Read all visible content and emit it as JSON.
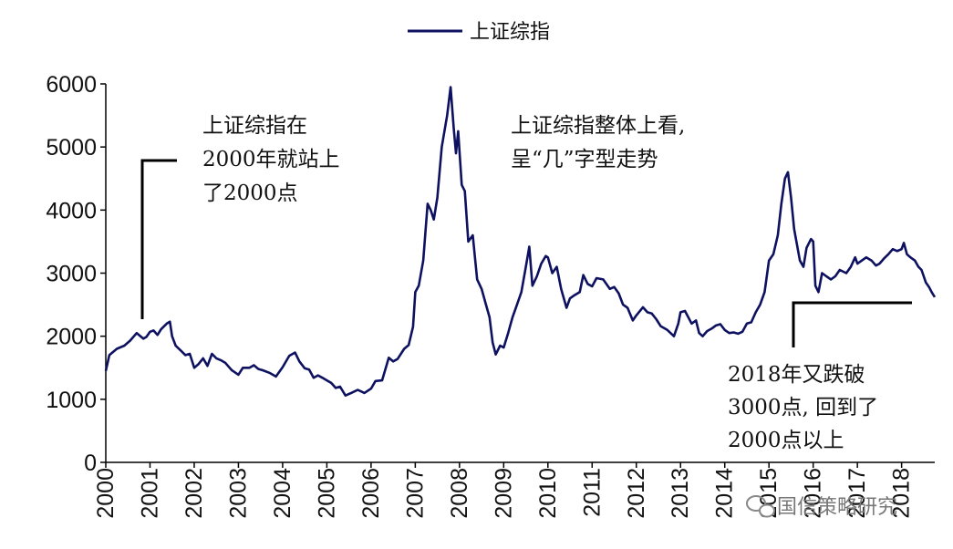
{
  "chart_data": {
    "type": "line",
    "title": "",
    "xlabel": "",
    "ylabel": "",
    "ylim": [
      0,
      6000
    ],
    "xlim": [
      2000,
      2018.75
    ],
    "y_ticks": [
      "0",
      "1000",
      "2000",
      "3000",
      "4000",
      "5000",
      "6000"
    ],
    "x_ticks": [
      "2000",
      "2001",
      "2002",
      "2003",
      "2004",
      "2005",
      "2006",
      "2007",
      "2008",
      "2009",
      "2010",
      "2011",
      "2012",
      "2013",
      "2014",
      "2015",
      "2016",
      "2017",
      "2018"
    ],
    "legend": {
      "position": "top-center",
      "entries": [
        "上证综指"
      ]
    },
    "series": [
      {
        "name": "上证综指",
        "color": "#0d1160",
        "points": [
          [
            2000.0,
            1450
          ],
          [
            2000.08,
            1700
          ],
          [
            2000.25,
            1800
          ],
          [
            2000.42,
            1850
          ],
          [
            2000.55,
            1930
          ],
          [
            2000.7,
            2050
          ],
          [
            2000.85,
            1960
          ],
          [
            2000.92,
            1990
          ],
          [
            2001.0,
            2070
          ],
          [
            2001.08,
            2090
          ],
          [
            2001.17,
            2020
          ],
          [
            2001.25,
            2110
          ],
          [
            2001.38,
            2200
          ],
          [
            2001.45,
            2230
          ],
          [
            2001.5,
            2000
          ],
          [
            2001.58,
            1850
          ],
          [
            2001.7,
            1770
          ],
          [
            2001.8,
            1700
          ],
          [
            2001.9,
            1720
          ],
          [
            2002.0,
            1500
          ],
          [
            2002.1,
            1560
          ],
          [
            2002.2,
            1650
          ],
          [
            2002.3,
            1530
          ],
          [
            2002.4,
            1720
          ],
          [
            2002.5,
            1650
          ],
          [
            2002.6,
            1620
          ],
          [
            2002.7,
            1580
          ],
          [
            2002.85,
            1460
          ],
          [
            2003.0,
            1390
          ],
          [
            2003.1,
            1500
          ],
          [
            2003.25,
            1500
          ],
          [
            2003.35,
            1540
          ],
          [
            2003.45,
            1480
          ],
          [
            2003.55,
            1460
          ],
          [
            2003.7,
            1420
          ],
          [
            2003.85,
            1360
          ],
          [
            2004.0,
            1510
          ],
          [
            2004.15,
            1690
          ],
          [
            2004.28,
            1740
          ],
          [
            2004.38,
            1600
          ],
          [
            2004.5,
            1490
          ],
          [
            2004.6,
            1470
          ],
          [
            2004.7,
            1340
          ],
          [
            2004.8,
            1380
          ],
          [
            2004.9,
            1340
          ],
          [
            2005.0,
            1300
          ],
          [
            2005.1,
            1260
          ],
          [
            2005.2,
            1180
          ],
          [
            2005.3,
            1200
          ],
          [
            2005.42,
            1060
          ],
          [
            2005.55,
            1100
          ],
          [
            2005.7,
            1150
          ],
          [
            2005.85,
            1100
          ],
          [
            2006.0,
            1170
          ],
          [
            2006.1,
            1290
          ],
          [
            2006.25,
            1300
          ],
          [
            2006.4,
            1660
          ],
          [
            2006.5,
            1600
          ],
          [
            2006.6,
            1640
          ],
          [
            2006.75,
            1800
          ],
          [
            2006.85,
            1860
          ],
          [
            2006.95,
            2150
          ],
          [
            2007.0,
            2700
          ],
          [
            2007.08,
            2800
          ],
          [
            2007.18,
            3200
          ],
          [
            2007.28,
            4100
          ],
          [
            2007.35,
            4000
          ],
          [
            2007.42,
            3850
          ],
          [
            2007.5,
            4200
          ],
          [
            2007.6,
            5000
          ],
          [
            2007.72,
            5500
          ],
          [
            2007.8,
            5950
          ],
          [
            2007.87,
            5300
          ],
          [
            2007.92,
            4900
          ],
          [
            2007.97,
            5250
          ],
          [
            2008.05,
            4400
          ],
          [
            2008.12,
            4300
          ],
          [
            2008.2,
            3500
          ],
          [
            2008.3,
            3600
          ],
          [
            2008.4,
            2900
          ],
          [
            2008.5,
            2750
          ],
          [
            2008.6,
            2500
          ],
          [
            2008.68,
            2300
          ],
          [
            2008.75,
            1900
          ],
          [
            2008.82,
            1710
          ],
          [
            2008.92,
            1850
          ],
          [
            2009.0,
            1820
          ],
          [
            2009.1,
            2050
          ],
          [
            2009.2,
            2300
          ],
          [
            2009.3,
            2500
          ],
          [
            2009.4,
            2700
          ],
          [
            2009.5,
            3100
          ],
          [
            2009.58,
            3420
          ],
          [
            2009.65,
            2800
          ],
          [
            2009.75,
            2950
          ],
          [
            2009.85,
            3150
          ],
          [
            2009.95,
            3270
          ],
          [
            2010.0,
            3250
          ],
          [
            2010.1,
            3000
          ],
          [
            2010.2,
            3100
          ],
          [
            2010.3,
            2750
          ],
          [
            2010.42,
            2450
          ],
          [
            2010.5,
            2600
          ],
          [
            2010.6,
            2650
          ],
          [
            2010.72,
            2700
          ],
          [
            2010.8,
            2970
          ],
          [
            2010.9,
            2830
          ],
          [
            2011.0,
            2790
          ],
          [
            2011.1,
            2920
          ],
          [
            2011.25,
            2900
          ],
          [
            2011.4,
            2750
          ],
          [
            2011.5,
            2780
          ],
          [
            2011.6,
            2680
          ],
          [
            2011.7,
            2500
          ],
          [
            2011.8,
            2450
          ],
          [
            2011.92,
            2250
          ],
          [
            2012.0,
            2330
          ],
          [
            2012.15,
            2460
          ],
          [
            2012.25,
            2380
          ],
          [
            2012.35,
            2360
          ],
          [
            2012.45,
            2270
          ],
          [
            2012.55,
            2160
          ],
          [
            2012.7,
            2100
          ],
          [
            2012.85,
            2000
          ],
          [
            2012.95,
            2200
          ],
          [
            2013.0,
            2380
          ],
          [
            2013.1,
            2400
          ],
          [
            2013.25,
            2200
          ],
          [
            2013.35,
            2250
          ],
          [
            2013.42,
            2050
          ],
          [
            2013.5,
            2000
          ],
          [
            2013.6,
            2080
          ],
          [
            2013.7,
            2120
          ],
          [
            2013.8,
            2170
          ],
          [
            2013.9,
            2190
          ],
          [
            2014.0,
            2100
          ],
          [
            2014.1,
            2050
          ],
          [
            2014.2,
            2060
          ],
          [
            2014.3,
            2040
          ],
          [
            2014.4,
            2070
          ],
          [
            2014.5,
            2200
          ],
          [
            2014.6,
            2220
          ],
          [
            2014.7,
            2380
          ],
          [
            2014.8,
            2500
          ],
          [
            2014.9,
            2700
          ],
          [
            2015.0,
            3200
          ],
          [
            2015.1,
            3300
          ],
          [
            2015.2,
            3600
          ],
          [
            2015.28,
            4100
          ],
          [
            2015.36,
            4500
          ],
          [
            2015.43,
            4600
          ],
          [
            2015.5,
            4200
          ],
          [
            2015.57,
            3700
          ],
          [
            2015.62,
            3500
          ],
          [
            2015.7,
            3200
          ],
          [
            2015.78,
            3100
          ],
          [
            2015.85,
            3400
          ],
          [
            2015.95,
            3540
          ],
          [
            2016.0,
            3500
          ],
          [
            2016.05,
            2800
          ],
          [
            2016.12,
            2700
          ],
          [
            2016.2,
            3000
          ],
          [
            2016.3,
            2950
          ],
          [
            2016.4,
            2900
          ],
          [
            2016.5,
            2950
          ],
          [
            2016.6,
            3050
          ],
          [
            2016.75,
            3000
          ],
          [
            2016.85,
            3100
          ],
          [
            2016.95,
            3250
          ],
          [
            2017.0,
            3150
          ],
          [
            2017.1,
            3200
          ],
          [
            2017.2,
            3250
          ],
          [
            2017.32,
            3200
          ],
          [
            2017.42,
            3120
          ],
          [
            2017.5,
            3150
          ],
          [
            2017.6,
            3230
          ],
          [
            2017.7,
            3300
          ],
          [
            2017.8,
            3380
          ],
          [
            2017.9,
            3350
          ],
          [
            2018.0,
            3380
          ],
          [
            2018.05,
            3480
          ],
          [
            2018.12,
            3300
          ],
          [
            2018.2,
            3250
          ],
          [
            2018.3,
            3200
          ],
          [
            2018.38,
            3100
          ],
          [
            2018.45,
            3050
          ],
          [
            2018.55,
            2850
          ],
          [
            2018.62,
            2780
          ],
          [
            2018.68,
            2700
          ],
          [
            2018.75,
            2620
          ]
        ]
      }
    ],
    "annotations": [
      {
        "lines": [
          "上证综指在",
          "2000年就站上",
          "了2000点"
        ]
      },
      {
        "lines": [
          "上证综指整体上看,",
          "呈“几”字型走势"
        ]
      },
      {
        "lines": [
          "2018年又跌破",
          "3000点, 回到了",
          "2000点以上"
        ]
      }
    ]
  },
  "watermark": {
    "text": "国信策略研究",
    "icon": "wechat-icon"
  }
}
